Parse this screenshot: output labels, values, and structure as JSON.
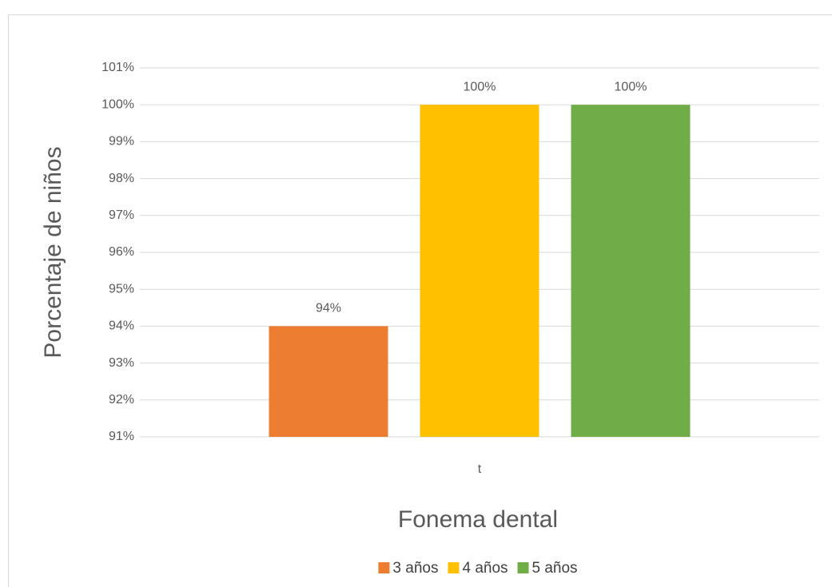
{
  "chart_data": {
    "type": "bar",
    "ylabel": "Porcentaje de  niños",
    "xlabel": "Fonema dental",
    "categories": [
      "t"
    ],
    "series": [
      {
        "name": "3 años",
        "color": "#ed7d31",
        "values": [
          94
        ],
        "value_labels": [
          "94%"
        ]
      },
      {
        "name": "4 años",
        "color": "#ffc000",
        "values": [
          100
        ],
        "value_labels": [
          "100%"
        ]
      },
      {
        "name": "5 años",
        "color": "#70ad47",
        "values": [
          100
        ],
        "value_labels": [
          "100%"
        ]
      }
    ],
    "ylim": [
      91,
      101
    ],
    "yticks": [
      {
        "value": 91,
        "label": "91%"
      },
      {
        "value": 92,
        "label": "92%"
      },
      {
        "value": 93,
        "label": "93%"
      },
      {
        "value": 94,
        "label": "94%"
      },
      {
        "value": 95,
        "label": "95%"
      },
      {
        "value": 96,
        "label": "96%"
      },
      {
        "value": 97,
        "label": "97%"
      },
      {
        "value": 98,
        "label": "98%"
      },
      {
        "value": 99,
        "label": "99%"
      },
      {
        "value": 100,
        "label": "100%"
      },
      {
        "value": 101,
        "label": "101%"
      }
    ],
    "grid": true,
    "legend": "bottom"
  }
}
